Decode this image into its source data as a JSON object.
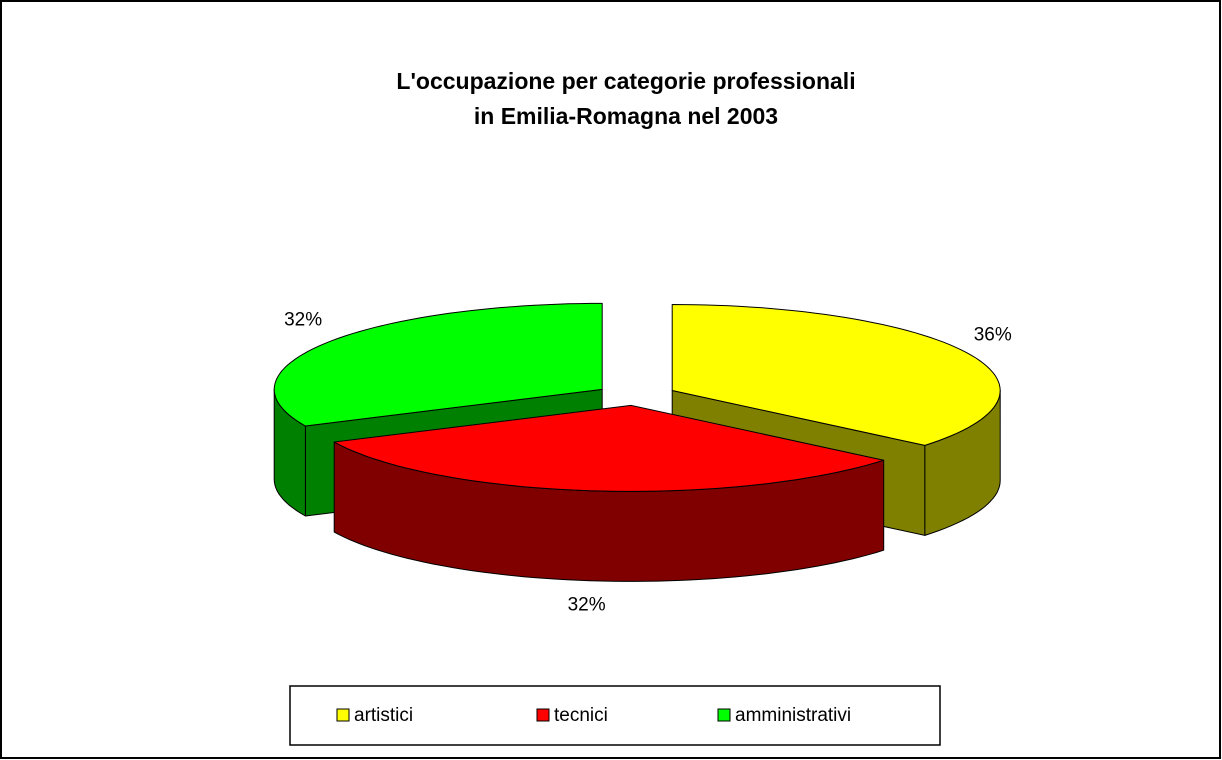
{
  "chart_data": {
    "type": "pie3d",
    "title": [
      "L'occupazione per categorie professionali",
      "in Emilia-Romagna nel 2003"
    ],
    "categories": [
      "artistici",
      "tecnici",
      "amministrativi"
    ],
    "values": [
      36,
      32,
      32
    ],
    "value_labels": [
      "36%",
      "32%",
      "32%"
    ],
    "colors": [
      "#ffff00",
      "#ff0000",
      "#00ff00"
    ],
    "side_colors": [
      "#808000",
      "#800000",
      "#008000"
    ],
    "legend": "bottom"
  }
}
